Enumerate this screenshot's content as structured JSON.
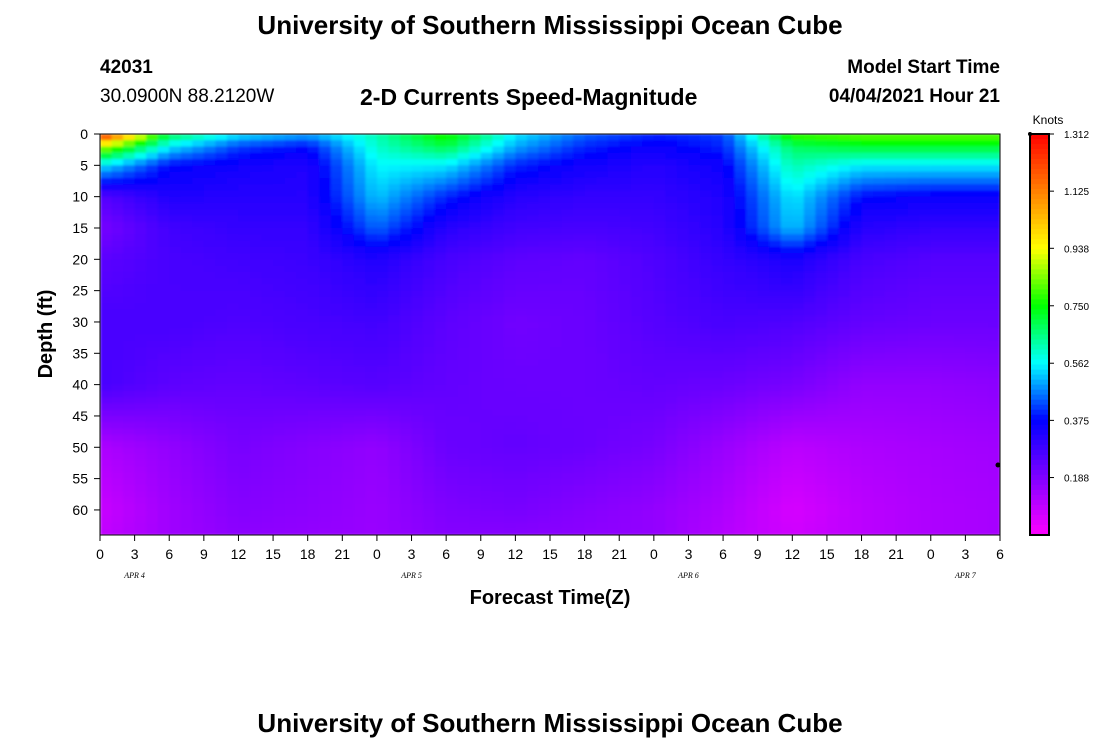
{
  "header": {
    "title": "University of Southern Mississippi Ocean Cube",
    "station_id": "42031",
    "station_location": "30.0900N  88.2120W",
    "plot_title": "2-D Currents Speed-Magnitude",
    "model_label": "Model Start Time",
    "model_time": "04/04/2021 Hour 21"
  },
  "footer": {
    "title": "University of Southern Mississippi Ocean Cube"
  },
  "chart_data": {
    "type": "heatmap",
    "xlabel": "Forecast Time(Z)",
    "ylabel": "Depth (ft)",
    "x_tick_labels": [
      "0",
      "3",
      "6",
      "9",
      "12",
      "15",
      "18",
      "21",
      "0",
      "3",
      "6",
      "9",
      "12",
      "15",
      "18",
      "21",
      "0",
      "3",
      "6",
      "9",
      "12",
      "15",
      "18",
      "21",
      "0",
      "3",
      "6"
    ],
    "x_range_hours": [
      0,
      78
    ],
    "date_labels": [
      {
        "label": "APR 4",
        "hour": 3
      },
      {
        "label": "APR 5",
        "hour": 27
      },
      {
        "label": "APR 6",
        "hour": 51
      },
      {
        "label": "APR 7",
        "hour": 75
      }
    ],
    "y_tick_labels": [
      "0",
      "5",
      "10",
      "15",
      "20",
      "25",
      "30",
      "35",
      "40",
      "45",
      "50",
      "55",
      "60"
    ],
    "y_range_ft": [
      0,
      64
    ],
    "y_inverted": true,
    "colorbar": {
      "title": "Knots",
      "tick_labels": [
        "1.312",
        "1.125",
        "0.938",
        "0.750",
        "0.562",
        "0.375",
        "0.188"
      ],
      "range": [
        0,
        1.312
      ],
      "colors": [
        "#ff00ff",
        "#8000ff",
        "#0000ff",
        "#00ffff",
        "#00ff00",
        "#ffff00",
        "#ff8000",
        "#ff0000"
      ]
    },
    "speed_grid": {
      "hours": [
        0,
        6,
        12,
        18,
        24,
        30,
        36,
        42,
        48,
        54,
        60,
        66,
        72,
        78
      ],
      "depths": [
        0,
        2,
        5,
        10,
        15,
        20,
        30,
        40,
        50,
        60,
        64
      ],
      "values": [
        [
          1.3,
          0.7,
          0.55,
          0.5,
          0.62,
          0.78,
          0.55,
          0.45,
          0.4,
          0.42,
          0.8,
          0.82,
          0.82,
          0.82
        ],
        [
          0.9,
          0.55,
          0.42,
          0.38,
          0.6,
          0.7,
          0.5,
          0.4,
          0.36,
          0.4,
          0.68,
          0.72,
          0.72,
          0.72
        ],
        [
          0.55,
          0.38,
          0.35,
          0.33,
          0.56,
          0.55,
          0.4,
          0.35,
          0.32,
          0.36,
          0.62,
          0.55,
          0.55,
          0.55
        ],
        [
          0.25,
          0.33,
          0.32,
          0.32,
          0.52,
          0.4,
          0.32,
          0.3,
          0.3,
          0.33,
          0.55,
          0.38,
          0.36,
          0.36
        ],
        [
          0.2,
          0.28,
          0.3,
          0.3,
          0.45,
          0.32,
          0.28,
          0.27,
          0.28,
          0.32,
          0.52,
          0.32,
          0.3,
          0.3
        ],
        [
          0.24,
          0.27,
          0.28,
          0.29,
          0.33,
          0.27,
          0.24,
          0.23,
          0.26,
          0.3,
          0.34,
          0.27,
          0.25,
          0.25
        ],
        [
          0.27,
          0.27,
          0.26,
          0.27,
          0.28,
          0.24,
          0.21,
          0.22,
          0.25,
          0.27,
          0.26,
          0.23,
          0.22,
          0.22
        ],
        [
          0.27,
          0.24,
          0.23,
          0.24,
          0.25,
          0.23,
          0.22,
          0.22,
          0.23,
          0.22,
          0.2,
          0.16,
          0.16,
          0.17
        ],
        [
          0.12,
          0.16,
          0.2,
          0.18,
          0.16,
          0.22,
          0.23,
          0.22,
          0.2,
          0.15,
          0.1,
          0.12,
          0.13,
          0.14
        ],
        [
          0.08,
          0.14,
          0.18,
          0.17,
          0.15,
          0.19,
          0.2,
          0.18,
          0.16,
          0.12,
          0.06,
          0.1,
          0.12,
          0.13
        ],
        [
          0.09,
          0.14,
          0.17,
          0.16,
          0.15,
          0.18,
          0.18,
          0.17,
          0.16,
          0.11,
          0.07,
          0.1,
          0.12,
          0.13
        ]
      ]
    }
  }
}
